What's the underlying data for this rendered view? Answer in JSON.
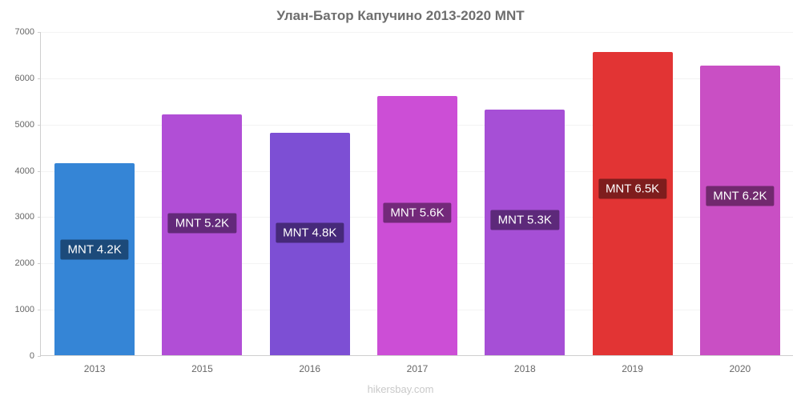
{
  "chart_data": {
    "type": "bar",
    "title": "Улан-Батор Капучино 2013-2020 MNT",
    "footer": "hikersbay.com",
    "categories": [
      "2013",
      "2015",
      "2016",
      "2017",
      "2018",
      "2019",
      "2020"
    ],
    "values": [
      4150,
      5200,
      4800,
      5600,
      5300,
      6550,
      6250
    ],
    "bar_labels": [
      "MNT 4.2K",
      "MNT 5.2K",
      "MNT 4.8K",
      "MNT 5.6K",
      "MNT 5.3K",
      "MNT 6.5K",
      "MNT 6.2K"
    ],
    "bar_colors": [
      "#3585d6",
      "#b14ed6",
      "#7d4fd4",
      "#cc4ed6",
      "#a64fd6",
      "#e23434",
      "#c94fc4"
    ],
    "label_bg_colors": [
      "#1c4a7a",
      "#63297a",
      "#46297a",
      "#73297a",
      "#5d297a",
      "#7e1d1d",
      "#71296e"
    ],
    "ylim": [
      0,
      7000
    ],
    "yticks": [
      0,
      1000,
      2000,
      3000,
      4000,
      5000,
      6000,
      7000
    ],
    "ylabel": "",
    "xlabel": "",
    "legend": "none",
    "grid": "faint-horizontal"
  }
}
